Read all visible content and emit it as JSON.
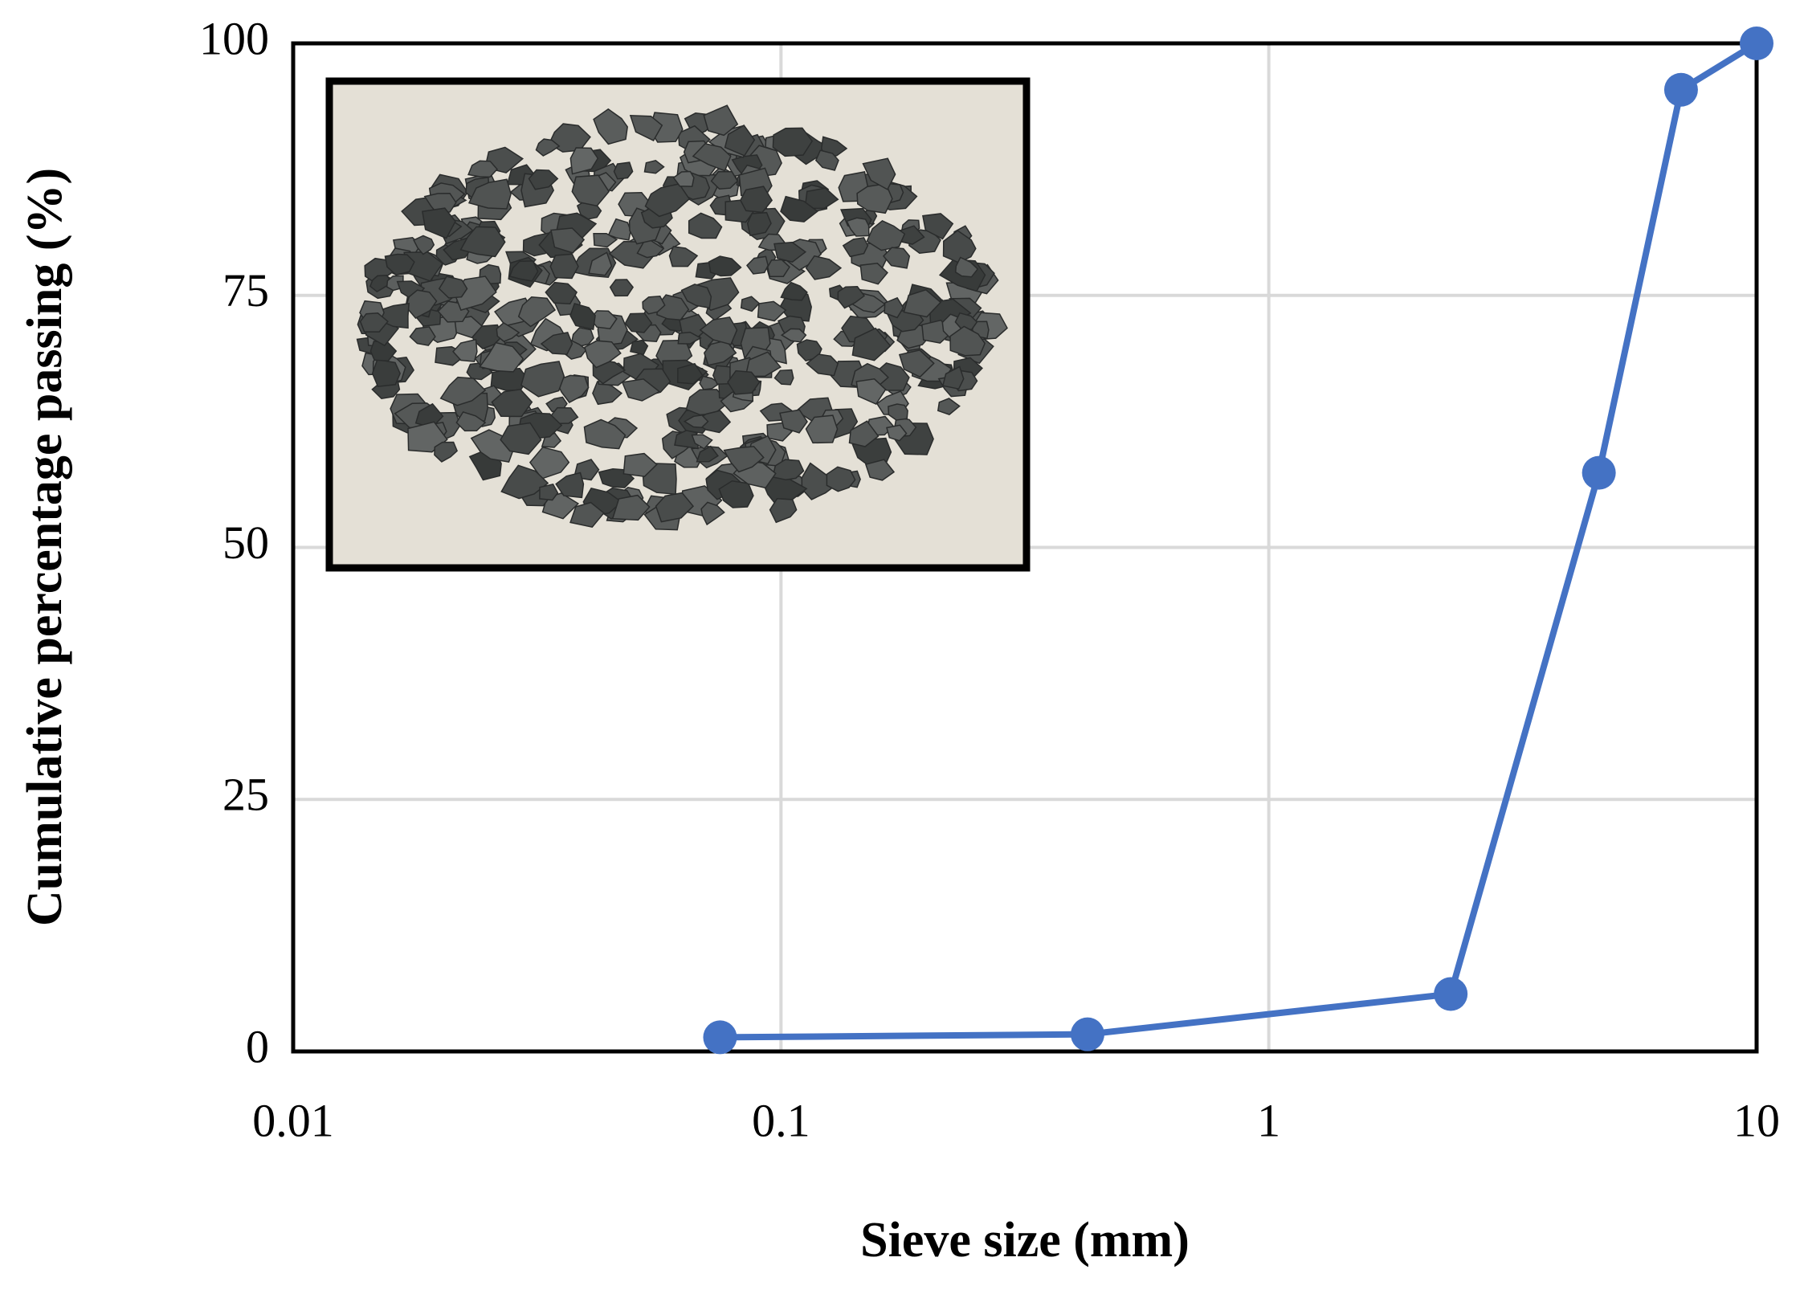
{
  "chart_data": {
    "type": "line",
    "xlabel": "Sieve size (mm)",
    "ylabel": "Cumulative percentage passing (%)",
    "x": [
      0.075,
      0.425,
      2.36,
      4.75,
      7,
      10
    ],
    "series": [
      {
        "color": "#4472c4",
        "values": [
          1.4,
          1.7,
          5.7,
          57.4,
          95.4,
          100
        ]
      }
    ],
    "xscale": "log",
    "xlim": [
      0.01,
      10
    ],
    "xticks": [
      0.01,
      0.1,
      1,
      10
    ],
    "ylim": [
      0,
      100
    ],
    "yticks": [
      0,
      25,
      50,
      75,
      100
    ],
    "grid": true
  }
}
